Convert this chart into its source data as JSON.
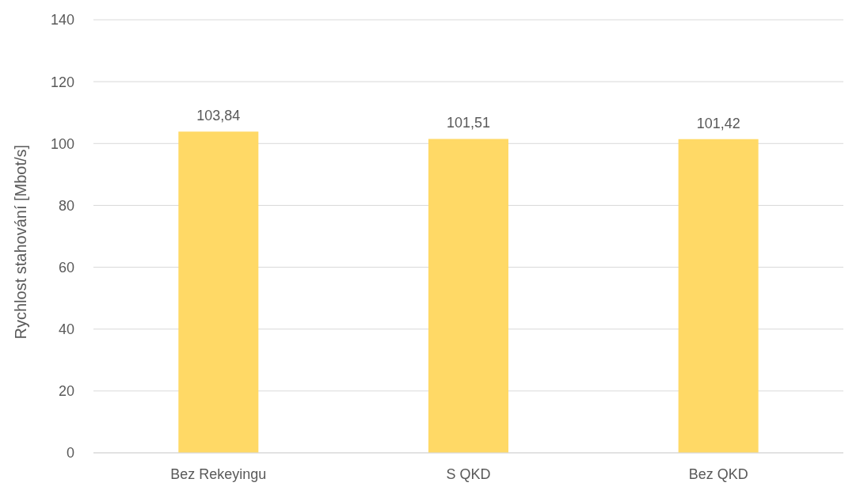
{
  "chart_data": {
    "type": "bar",
    "ylabel": "Rychlost stahování [Mbot/s]",
    "categories": [
      "Bez Rekeyingu",
      "S QKD",
      "Bez QKD"
    ],
    "values": [
      103.84,
      101.51,
      101.42
    ],
    "value_labels": [
      "103,84",
      "101,51",
      "101,42"
    ],
    "color": "#ffd966",
    "ylim": [
      0,
      140
    ],
    "yticks": [
      0,
      20,
      40,
      60,
      80,
      100,
      120,
      140
    ],
    "grid": "y",
    "legend": false
  }
}
